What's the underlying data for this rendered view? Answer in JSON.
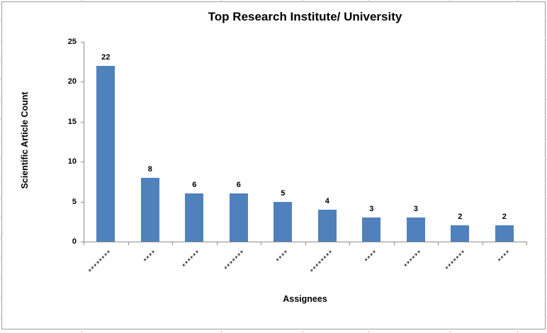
{
  "chart_data": {
    "type": "bar",
    "title": "Top Research Institute/ University",
    "xlabel": "Assignees",
    "ylabel": "Scientific Article Count",
    "categories": [
      "********",
      "****",
      "******",
      "*******",
      "****",
      "********",
      "****",
      "******",
      "*******",
      "****"
    ],
    "values": [
      22,
      8,
      6,
      6,
      5,
      4,
      3,
      3,
      2,
      2
    ],
    "data_labels": [
      "22",
      "8",
      "6",
      "6",
      "5",
      "4",
      "3",
      "3",
      "2",
      "2"
    ],
    "yticks": [
      "25",
      "20",
      "15",
      "10",
      "5",
      "0"
    ],
    "ytick_values": [
      25,
      20,
      15,
      10,
      5,
      0
    ],
    "ylim": [
      0,
      25
    ],
    "grid": false,
    "legend": "none",
    "bar_color": "#4f81bd",
    "axis_color": "#8c8c8c",
    "background_color": "#ffffff"
  }
}
